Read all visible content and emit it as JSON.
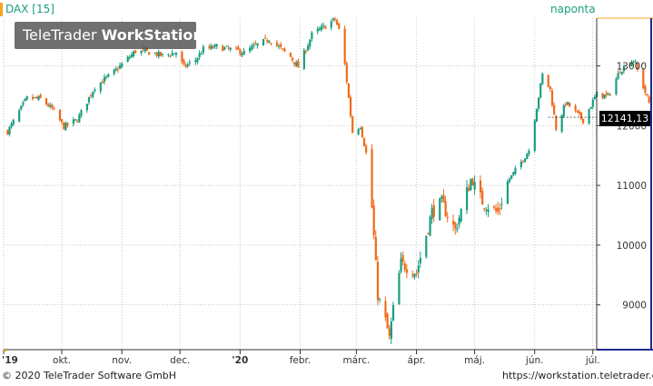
{
  "header": {
    "instrument": "DAX [15]",
    "period": "naponta",
    "watermark_brand": "TeleTrader",
    "watermark_product": "WorkStation"
  },
  "footer": {
    "copyright": "© 2020 TeleTrader Software GmbH",
    "url": "https://workstation.teletrader.com/"
  },
  "colors": {
    "up": "#1a9e80",
    "down": "#f06a1a",
    "accent_orange": "#f5a623",
    "price_tag_bg": "#000000",
    "right_axis_bar": "#1f2a8a",
    "grid": "#c8c8c8"
  },
  "chart_data": {
    "type": "candlestick",
    "x_axis_labels": [
      "'19",
      "okt.",
      "nov.",
      "dec.",
      "'20",
      "febr.",
      "márc.",
      "ápr.",
      "máj.",
      "jún.",
      "júl."
    ],
    "y_ticks": [
      9000,
      10000,
      11000,
      12000,
      13000
    ],
    "y_tick_labels": [
      "9000",
      "10000",
      "11000",
      "12000",
      "13000"
    ],
    "ylim": [
      8250,
      13800
    ],
    "last_price": 12141.13,
    "last_price_label": "12141,13",
    "grid": true,
    "waypoints": [
      [
        "2019-09-03",
        11900
      ],
      [
        "2019-09-13",
        12460
      ],
      [
        "2019-09-20",
        12450
      ],
      [
        "2019-09-26",
        12280
      ],
      [
        "2019-10-02",
        11980
      ],
      [
        "2019-10-09",
        12100
      ],
      [
        "2019-10-18",
        12650
      ],
      [
        "2019-10-28",
        12900
      ],
      [
        "2019-11-08",
        13250
      ],
      [
        "2019-11-15",
        13230
      ],
      [
        "2019-11-22",
        13170
      ],
      [
        "2019-11-29",
        13230
      ],
      [
        "2019-12-03",
        12980
      ],
      [
        "2019-12-09",
        13100
      ],
      [
        "2019-12-13",
        13280
      ],
      [
        "2019-12-20",
        13320
      ],
      [
        "2019-12-31",
        13250
      ],
      [
        "2020-01-03",
        13220
      ],
      [
        "2020-01-08",
        13320
      ],
      [
        "2020-01-16",
        13450
      ],
      [
        "2020-01-27",
        13150
      ],
      [
        "2020-01-31",
        12980
      ],
      [
        "2020-02-07",
        13520
      ],
      [
        "2020-02-19",
        13780
      ],
      [
        "2020-02-21",
        13600
      ],
      [
        "2020-02-24",
        13030
      ],
      [
        "2020-02-28",
        11890
      ],
      [
        "2020-03-03",
        12000
      ],
      [
        "2020-03-06",
        11540
      ],
      [
        "2020-03-09",
        10630
      ],
      [
        "2020-03-12",
        9160
      ],
      [
        "2020-03-16",
        8740
      ],
      [
        "2020-03-18",
        8440
      ],
      [
        "2020-03-20",
        8930
      ],
      [
        "2020-03-24",
        9700
      ],
      [
        "2020-03-27",
        9630
      ],
      [
        "2020-04-01",
        9540
      ],
      [
        "2020-04-09",
        10560
      ],
      [
        "2020-04-14",
        10700
      ],
      [
        "2020-04-21",
        10250
      ],
      [
        "2020-04-29",
        11100
      ],
      [
        "2020-05-05",
        10730
      ],
      [
        "2020-05-13",
        10540
      ],
      [
        "2020-05-18",
        11060
      ],
      [
        "2020-05-25",
        11390
      ],
      [
        "2020-05-29",
        11590
      ],
      [
        "2020-06-03",
        12490
      ],
      [
        "2020-06-05",
        12850
      ],
      [
        "2020-06-09",
        12600
      ],
      [
        "2020-06-12",
        11950
      ],
      [
        "2020-06-17",
        12380
      ],
      [
        "2020-06-19",
        12330
      ],
      [
        "2020-06-26",
        12090
      ],
      [
        "2020-07-03",
        12530
      ],
      [
        "2020-07-09",
        12490
      ],
      [
        "2020-07-15",
        12930
      ],
      [
        "2020-07-22",
        13110
      ],
      [
        "2020-07-30",
        12380
      ]
    ]
  }
}
